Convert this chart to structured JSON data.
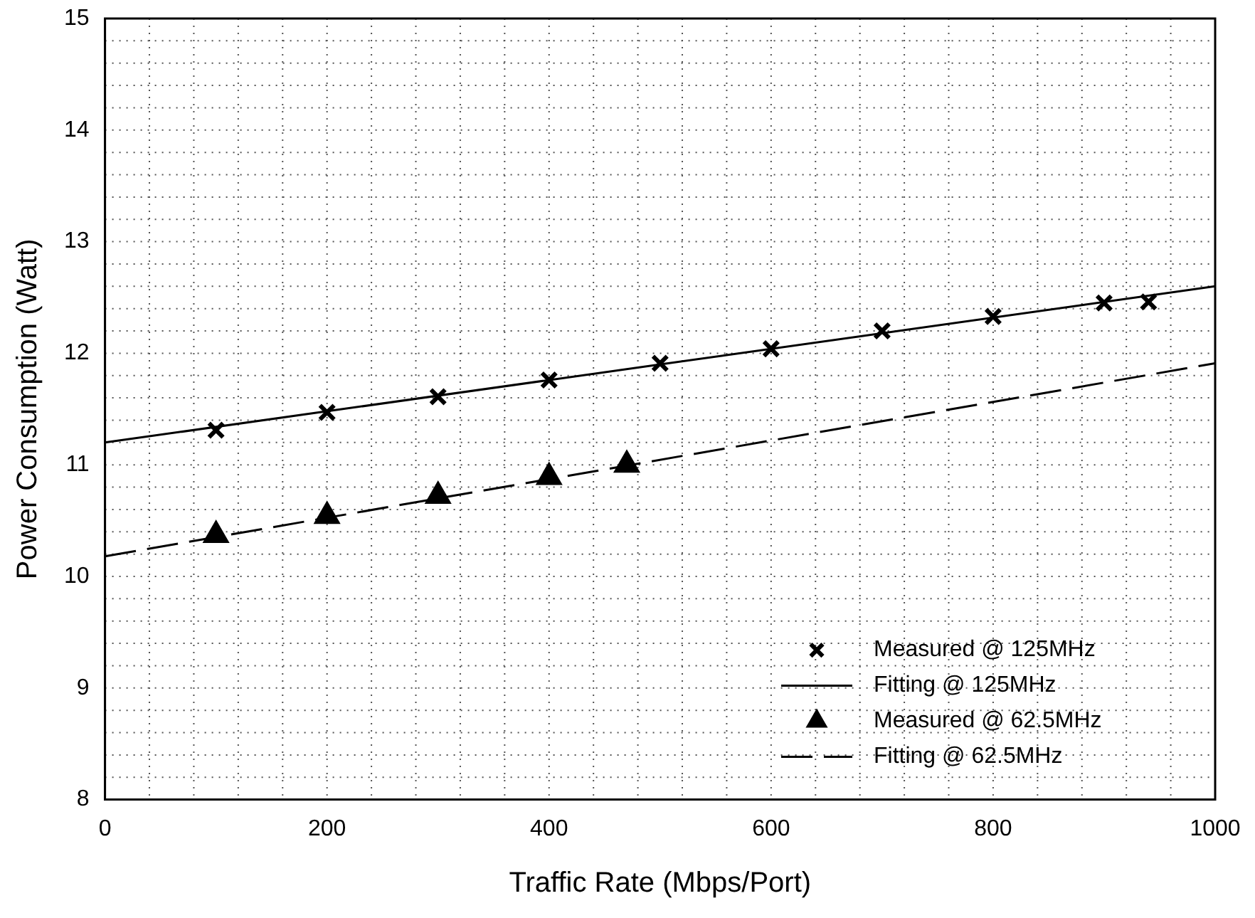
{
  "chart_data": {
    "type": "scatter",
    "xlabel": "Traffic Rate (Mbps/Port)",
    "ylabel": "Power Consumption (Watt)",
    "xlim": [
      0,
      1000
    ],
    "xticks": [
      0,
      200,
      400,
      600,
      800,
      1000
    ],
    "ylim": [
      8,
      15
    ],
    "yticks": [
      8,
      9,
      10,
      11,
      12,
      13,
      14,
      15
    ],
    "grid": true,
    "legend": "bottom right",
    "series": [
      {
        "name": "Measured @ 125MHz",
        "type": "scatter",
        "marker": "cross",
        "color": "#000000",
        "x": [
          100,
          200,
          300,
          400,
          500,
          600,
          700,
          800,
          900,
          940
        ],
        "values": [
          11.31,
          11.47,
          11.61,
          11.76,
          11.91,
          12.04,
          12.2,
          12.33,
          12.45,
          12.46
        ]
      },
      {
        "name": "Fitting @ 125MHz",
        "type": "line",
        "marker": "none",
        "line_style": "solid",
        "color": "#000000",
        "x": [
          0,
          1000
        ],
        "values": [
          11.2,
          12.6
        ]
      },
      {
        "name": "Measured @ 62.5MHz",
        "type": "scatter",
        "marker": "triangle",
        "color": "#000000",
        "x": [
          100,
          200,
          300,
          400,
          470
        ],
        "values": [
          10.37,
          10.54,
          10.72,
          10.89,
          11.0
        ]
      },
      {
        "name": "Fitting @ 62.5MHz",
        "type": "line",
        "marker": "none",
        "line_style": "dashed",
        "color": "#000000",
        "x": [
          0,
          1000
        ],
        "values": [
          10.18,
          11.91
        ]
      }
    ]
  }
}
